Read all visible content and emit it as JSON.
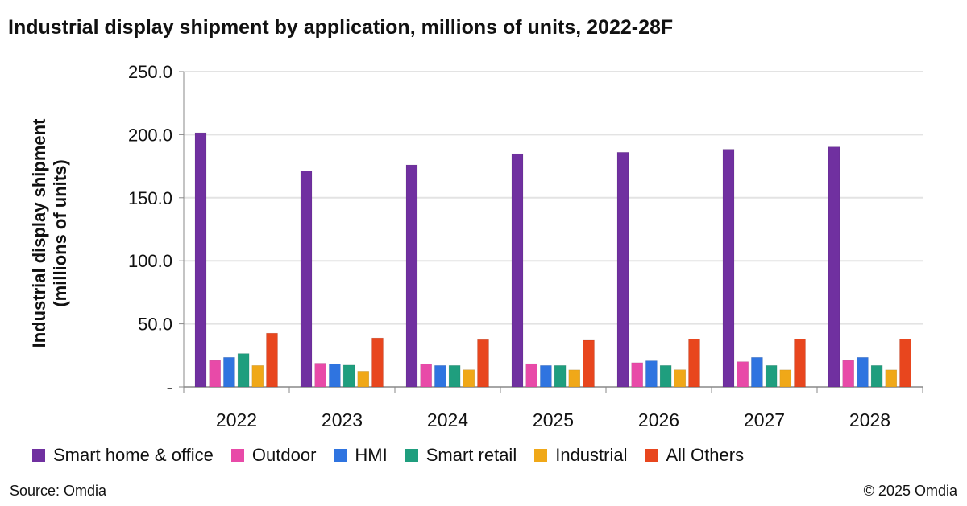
{
  "chart_data": {
    "type": "bar",
    "title": "Industrial display shipment by application, millions of units, 2022-28F",
    "ylabel_line1": "Industrial display shipment",
    "ylabel_line2": "(millions of units)",
    "xlabel": "",
    "ylim": [
      0,
      250
    ],
    "yticks": [
      0,
      50,
      100,
      150,
      200,
      250
    ],
    "ytick_labels": [
      "-",
      "50.0",
      "100.0",
      "150.0",
      "200.0",
      "250.0"
    ],
    "grid": true,
    "legend_position": "bottom",
    "categories": [
      "2022",
      "2023",
      "2024",
      "2025",
      "2026",
      "2027",
      "2028"
    ],
    "series": [
      {
        "name": "Smart home & office",
        "color": "#7030a0",
        "values": [
          201.5,
          171.3,
          176.0,
          184.8,
          186.0,
          188.4,
          190.3
        ]
      },
      {
        "name": "Outdoor",
        "color": "#e84aa8",
        "values": [
          21.0,
          18.8,
          18.2,
          18.4,
          19.2,
          20.0,
          21.0
        ]
      },
      {
        "name": "HMI",
        "color": "#2f74e0",
        "values": [
          23.4,
          18.2,
          17.0,
          17.0,
          20.7,
          23.4,
          23.4
        ]
      },
      {
        "name": "Smart retail",
        "color": "#1f9e7e",
        "values": [
          26.4,
          17.3,
          17.0,
          17.0,
          17.0,
          17.0,
          17.0
        ]
      },
      {
        "name": "Industrial",
        "color": "#f0a818",
        "values": [
          17.0,
          12.5,
          13.6,
          13.5,
          13.6,
          13.5,
          13.5
        ]
      },
      {
        "name": "All Others",
        "color": "#e8461e",
        "values": [
          42.6,
          38.8,
          37.5,
          37.0,
          38.0,
          38.0,
          38.0
        ]
      }
    ]
  },
  "footer": {
    "source": "Source: Omdia",
    "copyright": "© 2025 Omdia"
  }
}
